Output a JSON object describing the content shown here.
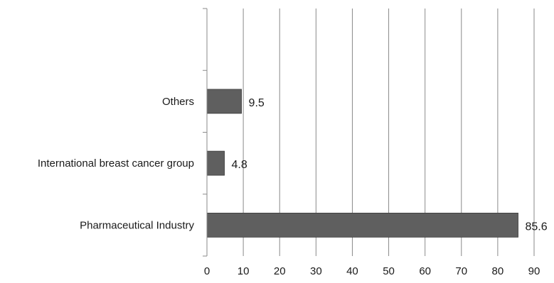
{
  "chart_data": {
    "type": "bar",
    "orientation": "horizontal",
    "categories": [
      "Pharmaceutical Industry",
      "International breast cancer group",
      "Others"
    ],
    "values": [
      85.6,
      4.8,
      9.5
    ],
    "data_labels": [
      "85.6",
      "4.8",
      "9.5"
    ],
    "x_ticks": [
      "0",
      "10",
      "20",
      "30",
      "40",
      "50",
      "60",
      "70",
      "80",
      "90"
    ],
    "xlim": [
      0,
      90
    ],
    "title": "",
    "xlabel": "",
    "ylabel": "",
    "grid": "vertical",
    "legend": "none",
    "colors": {
      "bar": "#5f5f5f",
      "bar_stroke": "#3a3a3a",
      "grid": "#8a8a8a",
      "axis": "#8a8a8a",
      "text": "#1a1a1a"
    }
  }
}
